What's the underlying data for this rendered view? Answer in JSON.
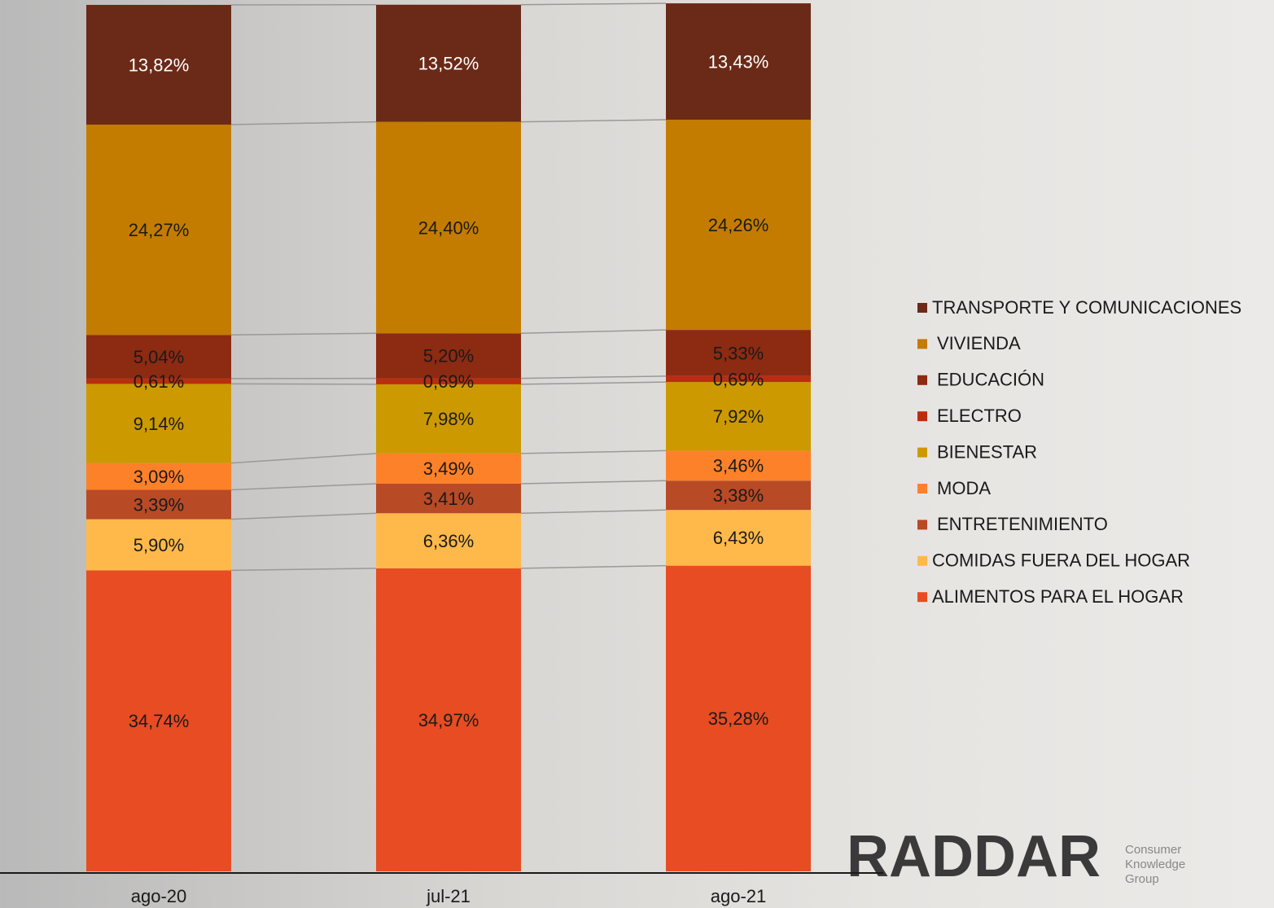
{
  "chart_data": {
    "type": "stacked-bar",
    "categories": [
      "ago-20",
      "jul-21",
      "ago-21"
    ],
    "ylim": [
      0,
      100
    ],
    "series": [
      {
        "name": "ALIMENTOS PARA EL HOGAR",
        "color": "#e84c22",
        "values": [
          34.74,
          34.97,
          35.28
        ],
        "value_labels": [
          "34,74%",
          "34,97%",
          "35,28%"
        ]
      },
      {
        "name": "COMIDAS FUERA DEL HOGAR",
        "color": "#ffb94a",
        "values": [
          5.9,
          6.36,
          6.43
        ],
        "value_labels": [
          "5,90%",
          "6,36%",
          "6,43%"
        ]
      },
      {
        "name": "ENTRETENIMIENTO",
        "color": "#b84a26",
        "values": [
          3.39,
          3.41,
          3.38
        ],
        "value_labels": [
          "3,39%",
          "3,41%",
          "3,38%"
        ]
      },
      {
        "name": "MODA",
        "color": "#fd8129",
        "values": [
          3.09,
          3.49,
          3.46
        ],
        "value_labels": [
          "3,09%",
          "3,49%",
          "3,46%"
        ]
      },
      {
        "name": "BIENESTAR",
        "color": "#cc9900",
        "values": [
          9.14,
          7.98,
          7.92
        ],
        "value_labels": [
          "9,14%",
          "7,98%",
          "7,92%"
        ]
      },
      {
        "name": "ELECTRO",
        "color": "#b92e0f",
        "values": [
          0.61,
          0.69,
          0.69
        ],
        "value_labels": [
          "0,61%",
          "0,69%",
          "0,69%"
        ]
      },
      {
        "name": "EDUCACIÓN",
        "color": "#8c2a12",
        "values": [
          5.04,
          5.2,
          5.33
        ],
        "value_labels": [
          "5,04%",
          "5,20%",
          "5,33%"
        ]
      },
      {
        "name": "VIVIENDA",
        "color": "#c47c00",
        "values": [
          24.27,
          24.4,
          24.26
        ],
        "value_labels": [
          "24,27%",
          "24,40%",
          "24,26%"
        ]
      },
      {
        "name": "TRANSPORTE Y COMUNICACIONES",
        "color": "#6b2a17",
        "values": [
          13.82,
          13.52,
          13.43
        ],
        "value_labels": [
          "13,82%",
          "13,52%",
          "13,43%"
        ]
      }
    ]
  },
  "logo": {
    "name": "RADDAR",
    "tagline": [
      "Consumer",
      "Knowledge",
      "Group"
    ]
  }
}
